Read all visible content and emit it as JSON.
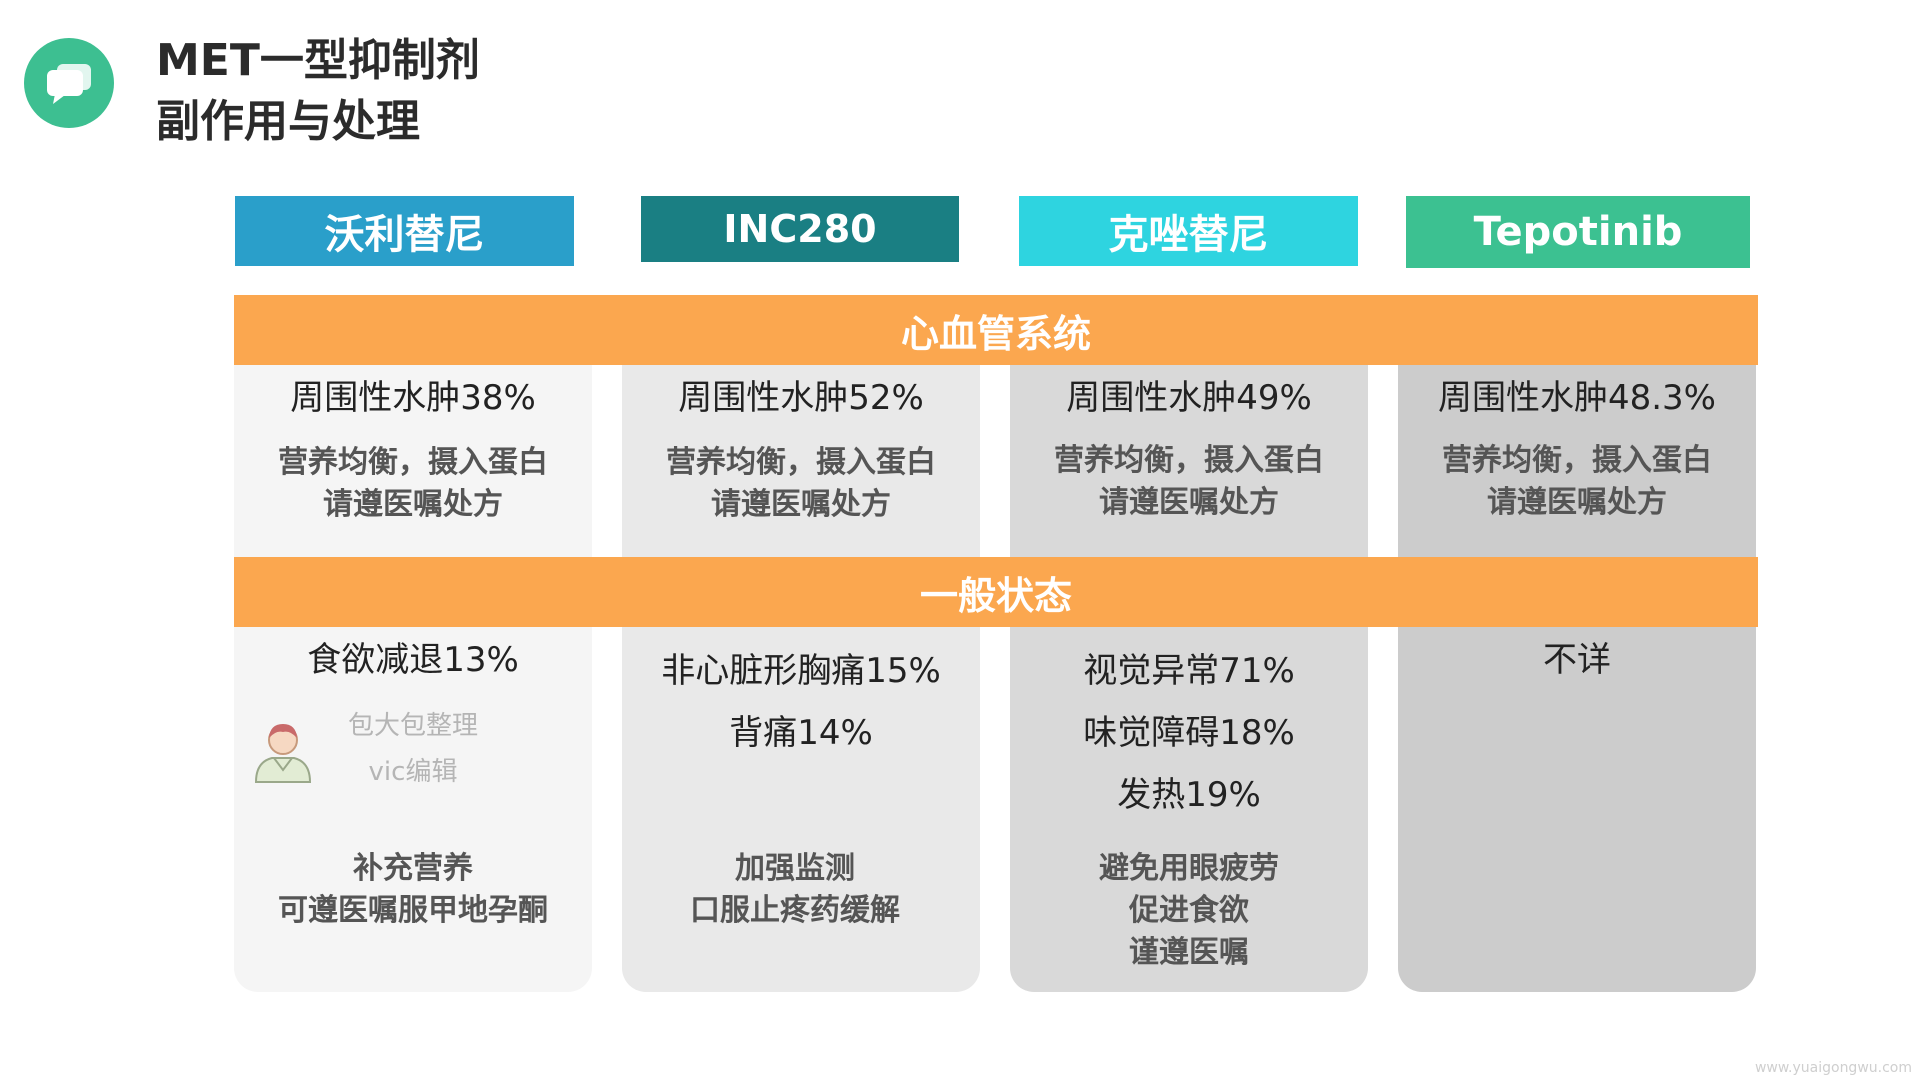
{
  "title": {
    "line1": "MET一型抑制剂",
    "line2": "副作用与处理",
    "icon": "chat-bubble-icon",
    "icon_color": "#3dbf91"
  },
  "columns": [
    {
      "name": "沃利替尼",
      "header_color": "#2a9fca",
      "bg_color": "#f5f5f5",
      "cardio_stat": "周围性水肿38%",
      "cardio_advice": [
        "营养均衡，摄入蛋白",
        "请遵医嘱处方"
      ],
      "general_stats": [
        "食欲减退13%"
      ],
      "general_advice": [
        "补充营养",
        "可遵医嘱服甲地孕酮"
      ]
    },
    {
      "name": "INC280",
      "header_color": "#1a7f83",
      "bg_color": "#e9e9e9",
      "cardio_stat": "周围性水肿52%",
      "cardio_advice": [
        "营养均衡，摄入蛋白",
        "请遵医嘱处方"
      ],
      "general_stats": [
        "非心脏形胸痛15%",
        "背痛14%"
      ],
      "general_advice": [
        "加强监测",
        "口服止疼药缓解"
      ]
    },
    {
      "name": "克唑替尼",
      "header_color": "#2ed4e0",
      "bg_color": "#d9d9d9",
      "cardio_stat": "周围性水肿49%",
      "cardio_advice": [
        "营养均衡，摄入蛋白",
        "请遵医嘱处方"
      ],
      "general_stats": [
        "视觉异常71%",
        "味觉障碍18%",
        "发热19%"
      ],
      "general_advice": [
        "避免用眼疲劳",
        "促进食欲",
        "谨遵医嘱"
      ]
    },
    {
      "name": "Tepotinib",
      "header_color": "#3cc191",
      "bg_color": "#cccccc",
      "cardio_stat": "周围性水肿48.3%",
      "cardio_advice": [
        "营养均衡，摄入蛋白",
        "请遵医嘱处方"
      ],
      "general_stats": [
        "不详"
      ],
      "general_advice": []
    }
  ],
  "bands": {
    "cardio": "心血管系统",
    "general": "一般状态",
    "color": "#fba74f"
  },
  "watermark": {
    "line1": "包大包整理",
    "line2": "vic编辑",
    "icon": "doctor-avatar-icon"
  },
  "site_watermark": "www.yuaigongwu.com"
}
